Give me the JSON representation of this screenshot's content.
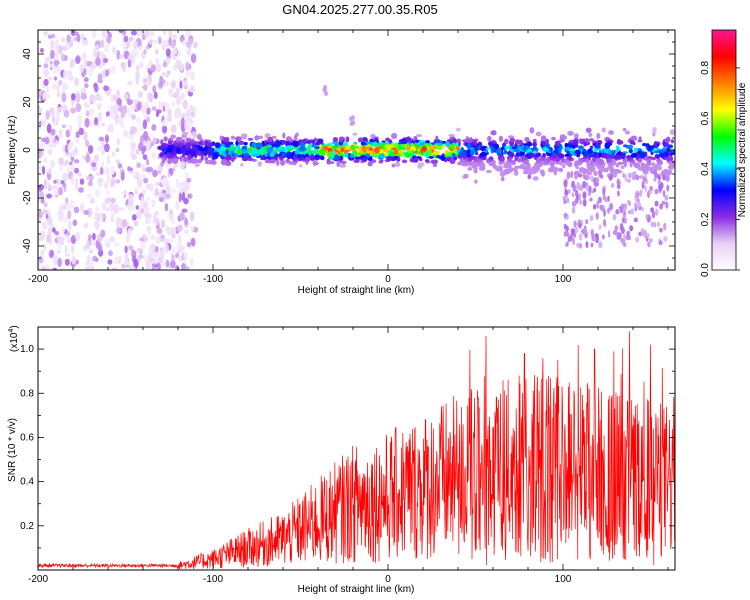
{
  "title": "GN04.2025.277.00.35.R05",
  "chart_data": [
    {
      "type": "heatmap",
      "name": "spectrogram",
      "xlabel": "Height of straight line (km)",
      "ylabel": "Frequency (Hz)",
      "xlim": [
        -200,
        164
      ],
      "ylim": [
        -50,
        50
      ],
      "xticks": [
        -200,
        -100,
        0,
        100
      ],
      "yticks": [
        -40,
        -20,
        0,
        20,
        40
      ],
      "colorbar": {
        "label": "Normalized spectral amplitude",
        "range": [
          0,
          0.95
        ],
        "ticks": [
          0.0,
          0.2,
          0.4,
          0.6,
          0.8
        ],
        "tick_labels": [
          "0.0",
          "0.2",
          "0.4",
          "0.6",
          "0.8"
        ],
        "stops": [
          "#ffffff",
          "#e8d0f5",
          "#8a2be2",
          "#0000ff",
          "#00ffff",
          "#00ff00",
          "#ffff00",
          "#ff8000",
          "#ff0000",
          "#ff1493"
        ]
      },
      "regions": [
        {
          "desc": "broadband noise",
          "x_range": [
            -200,
            -110
          ],
          "freq_range": [
            -50,
            50
          ],
          "amplitude": 0.1
        },
        {
          "desc": "narrow signal band",
          "x_range": [
            -130,
            164
          ],
          "freq_center": 0,
          "band_halfwidth_hz": 8,
          "amplitude_peak": 0.85
        }
      ],
      "features": [
        {
          "x": -35,
          "freq": 25,
          "amplitude": 0.1
        },
        {
          "x": -20,
          "freq": 12,
          "amplitude": 0.1
        },
        {
          "x": 135,
          "freq": -38,
          "amplitude": 0.1
        }
      ]
    },
    {
      "type": "line",
      "name": "snr",
      "xlabel": "Height of straight line (km)",
      "ylabel": "SNR (10 * v/v)",
      "yscale_label": "(x10",
      "yscale_exp": "4",
      "xlim": [
        -200,
        164
      ],
      "ylim": [
        0,
        1.1
      ],
      "xticks": [
        -200,
        -100,
        0,
        100
      ],
      "yticks": [
        0.2,
        0.4,
        0.6,
        0.8,
        1.0
      ],
      "ytick_labels": [
        "0.2",
        "0.4",
        "0.6",
        "0.8",
        "1.0"
      ],
      "color": "#ff0000",
      "trend": [
        {
          "x": -200,
          "y": 0.02
        },
        {
          "x": -120,
          "y": 0.02
        },
        {
          "x": -100,
          "y": 0.05
        },
        {
          "x": -80,
          "y": 0.1
        },
        {
          "x": -60,
          "y": 0.14
        },
        {
          "x": -40,
          "y": 0.22
        },
        {
          "x": -20,
          "y": 0.3
        },
        {
          "x": 0,
          "y": 0.33
        },
        {
          "x": 20,
          "y": 0.38
        },
        {
          "x": 40,
          "y": 0.42
        },
        {
          "x": 60,
          "y": 0.45
        },
        {
          "x": 80,
          "y": 0.47
        },
        {
          "x": 100,
          "y": 0.47
        },
        {
          "x": 120,
          "y": 0.45
        },
        {
          "x": 140,
          "y": 0.42
        },
        {
          "x": 160,
          "y": 0.4
        },
        {
          "x": 164,
          "y": 0.42
        }
      ],
      "peaks": [
        {
          "x": 56,
          "y": 1.06
        },
        {
          "x": 78,
          "y": 0.98
        },
        {
          "x": 97,
          "y": 0.95
        },
        {
          "x": 118,
          "y": 1.0
        },
        {
          "x": 138,
          "y": 1.08
        },
        {
          "x": 150,
          "y": 1.02
        }
      ]
    }
  ]
}
